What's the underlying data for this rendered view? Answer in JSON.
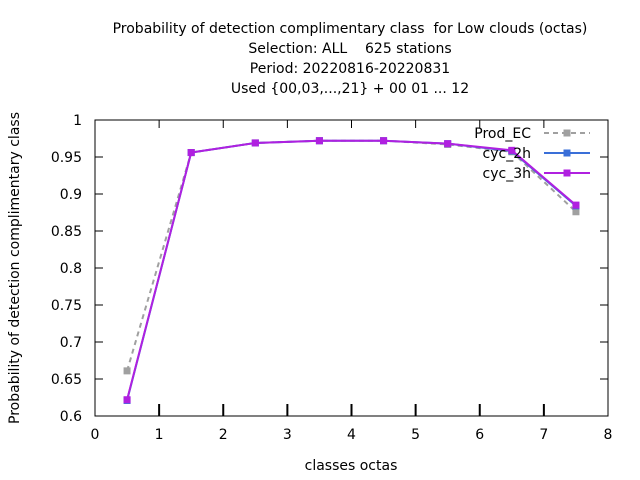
{
  "chart_data": {
    "type": "line",
    "title_lines": [
      "Probability of detection complimentary class  for Low clouds (octas)",
      "Selection: ALL    625 stations",
      "Period: 20220816-20220831",
      "Used {00,03,...,21} + 00 01 ... 12"
    ],
    "xlabel": "classes octas",
    "ylabel": "Probability of detection complimentary class",
    "xlim": [
      0,
      8
    ],
    "ylim": [
      0.6,
      1
    ],
    "xticks": [
      "0",
      "1",
      "2",
      "3",
      "4",
      "5",
      "6",
      "7",
      "8"
    ],
    "yticks": [
      "0.6",
      "0.65",
      "0.7",
      "0.75",
      "0.8",
      "0.85",
      "0.9",
      "0.95",
      "1"
    ],
    "grid": false,
    "legend_position": "top-right",
    "x": [
      0.5,
      1.5,
      2.5,
      3.5,
      4.5,
      5.5,
      6.5,
      7.5
    ],
    "series": [
      {
        "name": "Prod_EC",
        "color": "#a0a0a0",
        "dashed": true,
        "values": [
          0.661,
          0.956,
          0.969,
          0.972,
          0.972,
          0.967,
          0.957,
          0.876
        ]
      },
      {
        "name": "cyc_2h",
        "color": "#3a6fd8",
        "dashed": false,
        "values": [
          0.621,
          0.956,
          0.969,
          0.972,
          0.972,
          0.968,
          0.958,
          0.884
        ]
      },
      {
        "name": "cyc_3h",
        "color": "#b020e0",
        "dashed": false,
        "values": [
          0.622,
          0.956,
          0.969,
          0.972,
          0.972,
          0.968,
          0.959,
          0.885
        ]
      }
    ]
  }
}
